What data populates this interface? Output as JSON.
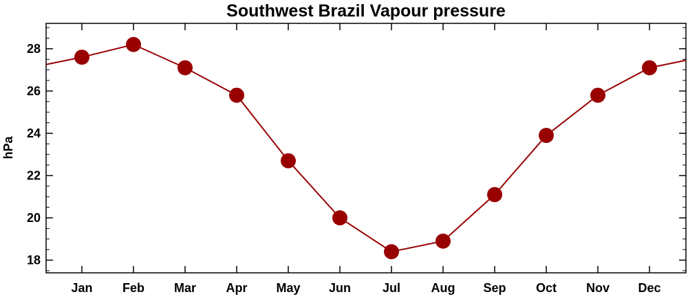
{
  "chart_data": {
    "type": "line",
    "title": "Southwest Brazil Vapour pressure",
    "xlabel": "",
    "ylabel": "hPa",
    "categories": [
      "Jan",
      "Feb",
      "Mar",
      "Apr",
      "May",
      "Jun",
      "Jul",
      "Aug",
      "Sep",
      "Oct",
      "Nov",
      "Dec"
    ],
    "series": [
      {
        "values": [
          27.6,
          28.2,
          27.1,
          25.8,
          22.7,
          20.0,
          18.4,
          18.9,
          21.1,
          23.9,
          25.8,
          27.1
        ]
      }
    ],
    "ylim": [
      17.4,
      29.2
    ],
    "yticks": [
      18,
      20,
      22,
      24,
      26,
      28
    ],
    "wrap_around": true,
    "grid": false,
    "legend": "none",
    "colors": {
      "series": "#990000",
      "line": "#990000",
      "axis": "#000000"
    }
  }
}
